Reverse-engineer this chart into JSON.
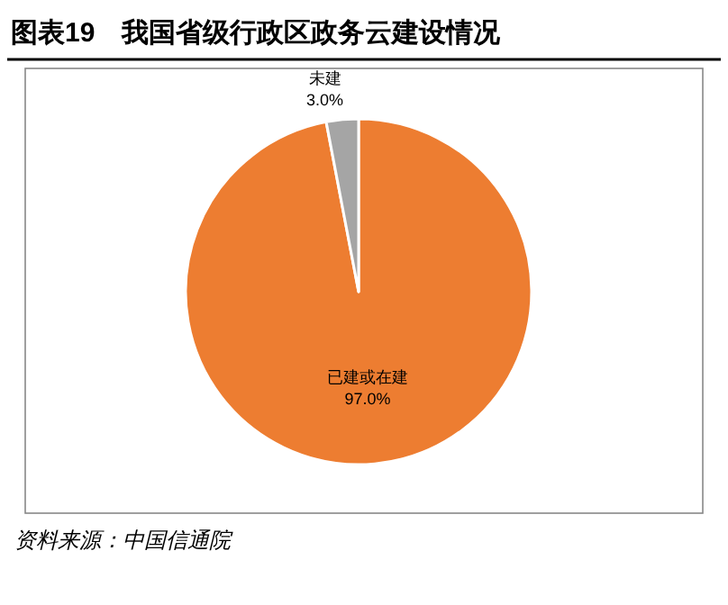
{
  "chart_data": {
    "type": "pie",
    "title": "图表19　我国省级行政区政务云建设情况",
    "categories": [
      "已建或在建",
      "未建"
    ],
    "values": [
      97.0,
      3.0
    ],
    "colors": [
      "#ed7d31",
      "#a5a5a5"
    ],
    "value_labels": [
      "97.0%",
      "3.0%"
    ],
    "annotations": [
      "资料来源：中国信通院"
    ]
  }
}
